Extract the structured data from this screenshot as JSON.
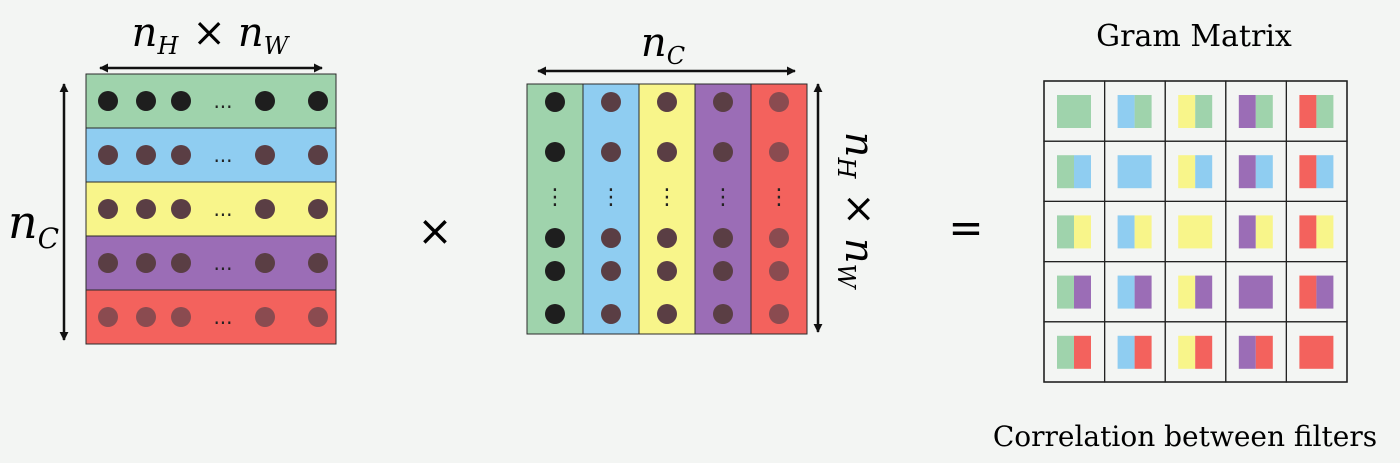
{
  "left_matrix": {
    "top_label": {
      "base1": "n",
      "sub1": "H",
      "op": "×",
      "base2": "n",
      "sub2": "W"
    },
    "side_label": {
      "base": "n",
      "sub": "C"
    },
    "ellipsis": "...",
    "rows": [
      {
        "fill": "#9fd3ac",
        "dot": "#1e1e1e"
      },
      {
        "fill": "#8fcdf1",
        "dot": "#5a3e44"
      },
      {
        "fill": "#f8f58a",
        "dot": "#5a3e44"
      },
      {
        "fill": "#9b6db6",
        "dot": "#5a3e44"
      },
      {
        "fill": "#f3625d",
        "dot": "#8a4b50"
      }
    ]
  },
  "multiply_sign": "×",
  "right_matrix": {
    "top_label": {
      "base": "n",
      "sub": "C"
    },
    "side_label": {
      "base1": "n",
      "sub1": "H",
      "op": "×",
      "base2": "n",
      "sub2": "W"
    },
    "ellipsis": "⋮",
    "cols": [
      {
        "fill": "#9fd3ac",
        "dot": "#1e1e1e"
      },
      {
        "fill": "#8fcdf1",
        "dot": "#5a3e44"
      },
      {
        "fill": "#f8f58a",
        "dot": "#5a3e44"
      },
      {
        "fill": "#9b6db6",
        "dot": "#5a3e44"
      },
      {
        "fill": "#f3625d",
        "dot": "#8a4b50"
      }
    ]
  },
  "equals_sign": "=",
  "gram": {
    "title": "Gram Matrix",
    "caption": "Correlation between filters",
    "colors": [
      "#9fd3ac",
      "#8fcdf1",
      "#f8f58a",
      "#9b6db6",
      "#f3625d"
    ]
  }
}
